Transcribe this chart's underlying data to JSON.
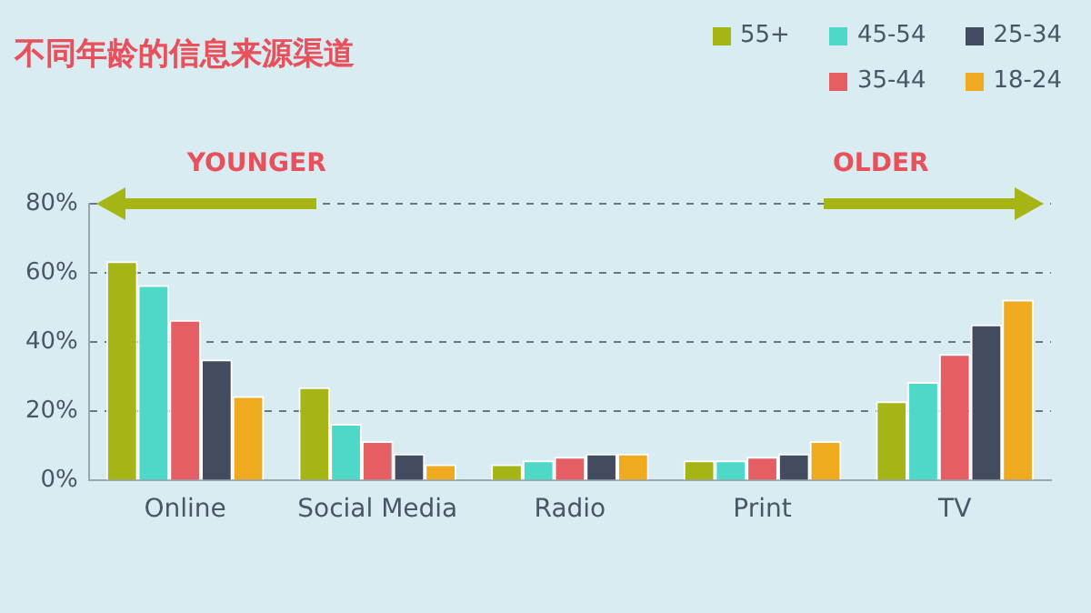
{
  "chart_data": {
    "type": "bar",
    "title": "不同年龄的信息来源渠道",
    "categories": [
      "Online",
      "Social Media",
      "Radio",
      "Print",
      "TV"
    ],
    "series": [
      {
        "name": "55+",
        "color": "#a5b515",
        "values": [
          63.4,
          27,
          4.7,
          5.8,
          22.9
        ]
      },
      {
        "name": "45-54",
        "color": "#4dd8c8",
        "values": [
          56.5,
          16.4,
          5.8,
          5.8,
          28.5
        ]
      },
      {
        "name": "35-44",
        "color": "#e45e64",
        "values": [
          46.4,
          11.4,
          6.9,
          6.9,
          36.6
        ]
      },
      {
        "name": "25-34",
        "color": "#434c5e",
        "values": [
          35,
          7.8,
          7.8,
          7.8,
          45.1
        ]
      },
      {
        "name": "18-24",
        "color": "#efaa20",
        "values": [
          24.4,
          4.7,
          7.8,
          11.4,
          52.3
        ]
      }
    ],
    "ylim": [
      0,
      80
    ],
    "yticks": [
      {
        "value": 0,
        "label": "0%"
      },
      {
        "value": 20,
        "label": "20%"
      },
      {
        "value": 40,
        "label": "40%"
      },
      {
        "value": 60,
        "label": "60%"
      },
      {
        "value": 80,
        "label": "80%"
      }
    ],
    "grid": "y",
    "legend": "top right",
    "annotations": [
      "YOUNGER",
      "OLDER"
    ]
  }
}
